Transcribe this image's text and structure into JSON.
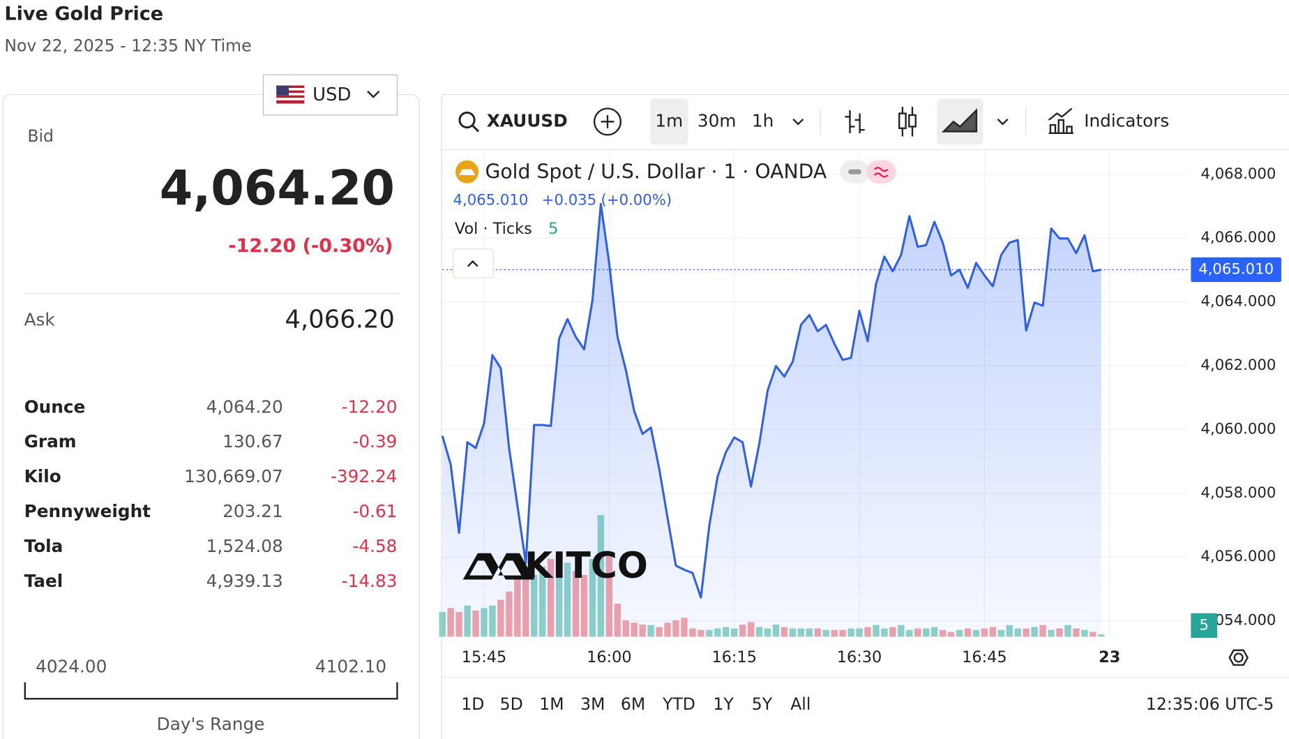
{
  "header": {
    "title": "Live Gold Price",
    "subtitle": "Nov 22, 2025 - 12:35 NY Time"
  },
  "currency": "USD",
  "quote": {
    "bid_label": "Bid",
    "bid": "4,064.20",
    "change": "-12.20 (-0.30%)",
    "ask_label": "Ask",
    "ask": "4,066.20"
  },
  "table": {
    "rows": [
      [
        "Ounce",
        "4,064.20",
        "-12.20"
      ],
      [
        "Gram",
        "130.67",
        "-0.39"
      ],
      [
        "Kilo",
        "130,669.07",
        "-392.24"
      ],
      [
        "Pennyweight",
        "203.21",
        "-0.61"
      ],
      [
        "Tola",
        "1,524.08",
        "-4.58"
      ],
      [
        "Tael",
        "4,939.13",
        "-14.83"
      ]
    ]
  },
  "day_range": {
    "low": "4024.00",
    "high": "4102.10",
    "label": "Day's Range"
  },
  "toolbar": {
    "symbol": "XAUUSD",
    "intervals": [
      "1m",
      "30m",
      "1h"
    ],
    "indicators": "Indicators"
  },
  "chart_data": {
    "type": "line",
    "title": "Gold Spot / U.S. Dollar · 1 · OANDA",
    "legend_price": "4,065.010",
    "legend_change": "+0.035",
    "legend_change_pct": "(+0.00%)",
    "volume_label": "Vol · Ticks",
    "logo": "KITCO",
    "categories": [
      null,
      null,
      null,
      null,
      null,
      "15:45",
      null,
      null,
      null,
      null,
      null,
      null,
      null,
      null,
      null,
      null,
      null,
      null,
      null,
      null,
      "16:00",
      null,
      null,
      null,
      null,
      null,
      null,
      null,
      null,
      null,
      null,
      null,
      null,
      null,
      null,
      "16:15",
      null,
      null,
      null,
      null,
      null,
      null,
      null,
      null,
      null,
      null,
      null,
      null,
      null,
      null,
      "16:30",
      null,
      null,
      null,
      null,
      null,
      null,
      null,
      null,
      null,
      null,
      null,
      null,
      null,
      null,
      "16:45",
      null,
      null,
      null,
      null,
      null,
      null,
      null,
      null,
      null,
      null,
      null,
      null,
      null,
      null,
      "23"
    ],
    "values": [
      4059.8,
      4058.9,
      4056.76,
      4059.6,
      4059.42,
      4060.19,
      4062.33,
      4061.92,
      4059.42,
      4057.61,
      4055.81,
      4060.14,
      4060.14,
      4060.11,
      4062.85,
      4063.46,
      4062.9,
      4062.51,
      4064.06,
      4067.07,
      4065.22,
      4062.9,
      4061.87,
      4060.58,
      4059.86,
      4060.06,
      4058.77,
      4057.23,
      4055.73,
      4055.6,
      4055.5,
      4054.73,
      4056.97,
      4058.52,
      4059.29,
      4059.75,
      4059.6,
      4058.21,
      4059.55,
      4061.22,
      4061.99,
      4061.66,
      4062.12,
      4063.28,
      4063.59,
      4063.08,
      4063.28,
      4062.69,
      4062.18,
      4062.25,
      4063.72,
      4062.77,
      4064.57,
      4065.42,
      4064.96,
      4065.47,
      4066.69,
      4065.73,
      4065.78,
      4066.51,
      4065.86,
      4064.83,
      4065.01,
      4064.44,
      4065.22,
      4064.83,
      4064.49,
      4065.47,
      4065.86,
      4065.94,
      4063.1,
      4063.98,
      4063.88,
      4066.3,
      4065.99,
      4065.99,
      4065.53,
      4066.09,
      4064.96,
      4065.01,
      null
    ],
    "color": "#2f5fe3",
    "volume": {
      "values": [
        51,
        59,
        51,
        64,
        54,
        59,
        64,
        76,
        93,
        118,
        135,
        127,
        144,
        160,
        169,
        152,
        135,
        127,
        160,
        250,
        169,
        68,
        34,
        29,
        25,
        24,
        20,
        29,
        34,
        39,
        17,
        14,
        14,
        17,
        20,
        17,
        25,
        30,
        20,
        17,
        25,
        20,
        17,
        17,
        17,
        17,
        14,
        14,
        14,
        17,
        17,
        20,
        24,
        17,
        20,
        24,
        14,
        17,
        17,
        20,
        14,
        10,
        14,
        17,
        14,
        17,
        20,
        14,
        24,
        17,
        17,
        20,
        24,
        14,
        17,
        24,
        17,
        14,
        10,
        5,
        null
      ],
      "ylim": [
        0,
        300
      ],
      "up_color": "#8fd3c8",
      "down_color": "#f2a3a9"
    },
    "ylim": [
      4053.5,
      4068.75
    ],
    "yticks": [
      {
        "value": 4054,
        "label": "4,054.000"
      },
      {
        "value": 4056,
        "label": "4,056.000"
      },
      {
        "value": 4058,
        "label": "4,058.000"
      },
      {
        "value": 4060,
        "label": "4,060.000"
      },
      {
        "value": 4062,
        "label": "4,062.000"
      },
      {
        "value": 4064,
        "label": "4,064.000"
      },
      {
        "value": 4066,
        "label": "4,066.000"
      },
      {
        "value": 4068,
        "label": "4,068.000"
      }
    ],
    "grid": true,
    "ranges": [
      "1D",
      "5D",
      "1M",
      "3M",
      "6M",
      "YTD",
      "1Y",
      "5Y",
      "All"
    ],
    "clock": "12:35:06 UTC-5"
  }
}
